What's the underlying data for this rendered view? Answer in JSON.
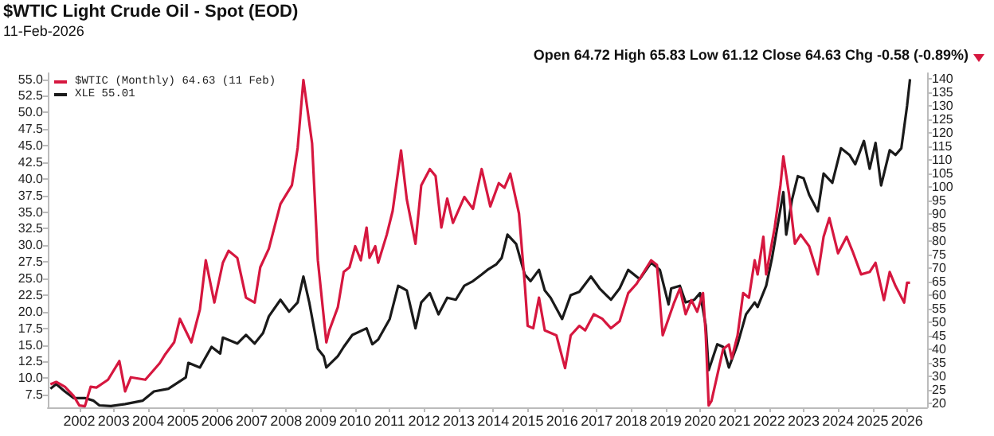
{
  "chart_data": {
    "type": "line",
    "title": "$WTIC Light Crude Oil - Spot (EOD)",
    "subtitle": "11-Feb-2026",
    "annotations": [
      "Open 64.72 High 65.83 Low 61.12 Close 64.63 Chg -0.58 (-0.89%)"
    ],
    "legend": "top left",
    "grid": false,
    "xlim": [
      "2001-02",
      "2026-08"
    ],
    "xticks": [
      "2002",
      "2003",
      "2004",
      "2005",
      "2006",
      "2007",
      "2008",
      "2009",
      "2010",
      "2011",
      "2012",
      "2013",
      "2014",
      "2015",
      "2016",
      "2017",
      "2018",
      "2019",
      "2020",
      "2021",
      "2022",
      "2023",
      "2024",
      "2025",
      "2026"
    ],
    "ylim": [
      5.6,
      55.9
    ],
    "yticks": [
      {
        "value": 7.5,
        "label": "7.5"
      },
      {
        "value": 10,
        "label": "10.0"
      },
      {
        "value": 12.5,
        "label": "12.5"
      },
      {
        "value": 15,
        "label": "15.0"
      },
      {
        "value": 17.5,
        "label": "17.5"
      },
      {
        "value": 20,
        "label": "20.0"
      },
      {
        "value": 22.5,
        "label": "22.5"
      },
      {
        "value": 25,
        "label": "25.0"
      },
      {
        "value": 27.5,
        "label": "27.5"
      },
      {
        "value": 30,
        "label": "30.0"
      },
      {
        "value": 32.5,
        "label": "32.5"
      },
      {
        "value": 35,
        "label": "35.0"
      },
      {
        "value": 37.5,
        "label": "37.5"
      },
      {
        "value": 40,
        "label": "40.0"
      },
      {
        "value": 42.5,
        "label": "42.5"
      },
      {
        "value": 45,
        "label": "45.0"
      },
      {
        "value": 47.5,
        "label": "47.5"
      },
      {
        "value": 50,
        "label": "50.0"
      },
      {
        "value": 52.5,
        "label": "52.5"
      },
      {
        "value": 55,
        "label": "55.0"
      }
    ],
    "y2lim": [
      18.6,
      142
    ],
    "y2ticks": [
      20,
      25,
      30,
      35,
      40,
      45,
      50,
      55,
      60,
      65,
      70,
      75,
      80,
      85,
      90,
      95,
      100,
      105,
      110,
      115,
      120,
      125,
      130,
      135,
      140
    ],
    "series": [
      {
        "name": "$WTIC (Monthly) 64.63 (11 Feb)",
        "color": "#d6173f",
        "axis": "y2",
        "x": [
          "2001-03",
          "2001-05",
          "2001-08",
          "2001-11",
          "2002-01",
          "2002-03",
          "2002-05",
          "2002-07",
          "2002-11",
          "2003-03",
          "2003-05",
          "2003-07",
          "2003-12",
          "2004-05",
          "2004-07",
          "2004-10",
          "2004-12",
          "2005-04",
          "2005-07",
          "2005-09",
          "2005-12",
          "2006-03",
          "2006-05",
          "2006-08",
          "2006-11",
          "2007-02",
          "2007-04",
          "2007-07",
          "2007-11",
          "2008-03",
          "2008-05",
          "2008-07",
          "2008-10",
          "2008-12",
          "2009-03",
          "2009-04",
          "2009-07",
          "2009-09",
          "2009-11",
          "2010-01",
          "2010-03",
          "2010-05",
          "2010-06",
          "2010-08",
          "2010-09",
          "2010-12",
          "2011-02",
          "2011-05",
          "2011-07",
          "2011-10",
          "2011-12",
          "2012-03",
          "2012-05",
          "2012-07",
          "2012-09",
          "2012-11",
          "2013-03",
          "2013-06",
          "2013-09",
          "2013-12",
          "2014-03",
          "2014-05",
          "2014-07",
          "2014-10",
          "2014-12",
          "2015-01",
          "2015-03",
          "2015-05",
          "2015-07",
          "2015-11",
          "2016-02",
          "2016-04",
          "2016-07",
          "2016-09",
          "2016-12",
          "2017-03",
          "2017-06",
          "2017-09",
          "2017-12",
          "2018-03",
          "2018-08",
          "2018-10",
          "2018-12",
          "2019-04",
          "2019-06",
          "2019-08",
          "2019-10",
          "2019-12",
          "2020-02",
          "2020-03",
          "2020-04",
          "2020-05",
          "2020-09",
          "2020-11",
          "2020-12",
          "2021-02",
          "2021-04",
          "2021-06",
          "2021-08",
          "2021-09",
          "2021-11",
          "2021-12",
          "2022-03",
          "2022-05",
          "2022-06",
          "2022-08",
          "2022-10",
          "2022-12",
          "2023-03",
          "2023-06",
          "2023-08",
          "2023-10",
          "2024-01",
          "2024-04",
          "2024-06",
          "2024-09",
          "2024-12",
          "2025-02",
          "2025-05",
          "2025-07",
          "2025-09",
          "2025-12",
          "2026-01",
          "2026-02"
        ],
        "values": [
          27.1,
          28,
          26.2,
          22.8,
          19.3,
          19,
          26.2,
          25.9,
          28.8,
          35.7,
          24.5,
          29.7,
          28.8,
          34.9,
          38.3,
          42.6,
          51.3,
          42.6,
          54.8,
          72.9,
          57.3,
          72,
          76.4,
          73.8,
          59.1,
          57.3,
          70.3,
          77.2,
          93.7,
          100.6,
          114.4,
          139.5,
          116.1,
          72.9,
          42.6,
          47,
          55.6,
          68.6,
          70.3,
          78.1,
          72.9,
          85,
          73.8,
          78.1,
          72,
          82.4,
          91.1,
          113.5,
          95.4,
          79,
          100.6,
          106.6,
          104,
          85,
          95.7,
          86.7,
          96.3,
          91.9,
          106.6,
          92.8,
          101.4,
          99.7,
          104.9,
          90.2,
          64.3,
          48.7,
          47.8,
          59.1,
          47,
          45.2,
          33.1,
          45.2,
          48.7,
          47,
          53,
          51.3,
          47.8,
          50.4,
          60.8,
          64.3,
          72.9,
          71.2,
          45.2,
          57.3,
          62.5,
          53,
          58.2,
          53.9,
          60.8,
          45.2,
          19.3,
          21,
          40.1,
          41.8,
          36.6,
          45.2,
          60.8,
          59.1,
          72.9,
          67.7,
          81.6,
          67.7,
          85,
          100.6,
          111.3,
          97.1,
          79,
          82.4,
          78.1,
          67.7,
          81.6,
          88.5,
          75.5,
          81.6,
          76.4,
          67.7,
          68.6,
          72,
          58.2,
          68.6,
          63.4,
          57.3,
          64.6,
          64.6
        ]
      },
      {
        "name": "XLE 55.01",
        "color": "#1a1a1a",
        "axis": "y",
        "x": [
          "2001-03",
          "2001-05",
          "2001-08",
          "2001-11",
          "2002-03",
          "2002-06",
          "2002-08",
          "2002-12",
          "2003-05",
          "2003-11",
          "2004-03",
          "2004-08",
          "2005-02",
          "2005-03",
          "2005-07",
          "2005-11",
          "2006-02",
          "2006-03",
          "2006-08",
          "2006-11",
          "2007-02",
          "2007-05",
          "2007-07",
          "2007-11",
          "2008-02",
          "2008-05",
          "2008-07",
          "2008-09",
          "2008-12",
          "2009-02",
          "2009-03",
          "2009-07",
          "2009-09",
          "2009-12",
          "2010-05",
          "2010-07",
          "2010-09",
          "2011-01",
          "2011-04",
          "2011-07",
          "2011-10",
          "2011-12",
          "2012-03",
          "2012-06",
          "2012-09",
          "2012-12",
          "2013-03",
          "2013-06",
          "2013-09",
          "2013-11",
          "2014-02",
          "2014-04",
          "2014-06",
          "2014-09",
          "2014-12",
          "2015-02",
          "2015-05",
          "2015-07",
          "2015-09",
          "2016-01",
          "2016-04",
          "2016-07",
          "2016-11",
          "2017-02",
          "2017-06",
          "2017-09",
          "2017-12",
          "2018-04",
          "2018-08",
          "2018-11",
          "2019-02",
          "2019-03",
          "2019-06",
          "2019-08",
          "2019-11",
          "2020-01",
          "2020-03",
          "2020-04",
          "2020-07",
          "2020-09",
          "2020-11",
          "2021-02",
          "2021-05",
          "2021-08",
          "2021-09",
          "2021-12",
          "2022-02",
          "2022-04",
          "2022-06",
          "2022-07",
          "2022-09",
          "2022-11",
          "2023-01",
          "2023-03",
          "2023-06",
          "2023-08",
          "2023-11",
          "2024-02",
          "2024-05",
          "2024-07",
          "2024-10",
          "2024-12",
          "2025-02",
          "2025-04",
          "2025-07",
          "2025-09",
          "2025-11",
          "2026-01",
          "2026-02"
        ],
        "values": [
          8.4,
          9.1,
          8,
          7,
          7,
          6.6,
          5.9,
          5.8,
          6.1,
          6.6,
          8,
          8.4,
          10.1,
          12.3,
          11.6,
          14.7,
          13.7,
          16.1,
          15.2,
          16.5,
          15.2,
          16.8,
          19.3,
          21.8,
          20,
          21.4,
          25.3,
          21.4,
          14.4,
          13.3,
          11.6,
          13.3,
          14.7,
          16.5,
          17.5,
          15.1,
          15.8,
          18.9,
          23.9,
          23.2,
          17.5,
          21.4,
          22.8,
          19.6,
          22.1,
          21.8,
          23.9,
          24.6,
          25.6,
          26.3,
          27.1,
          28.1,
          31.6,
          30.2,
          25.6,
          24.6,
          26.3,
          23.2,
          22.1,
          18.9,
          22.5,
          23,
          25.3,
          23.5,
          21.8,
          23.5,
          26.3,
          24.9,
          27.4,
          26.3,
          21.1,
          23.5,
          23.9,
          21.4,
          21.8,
          22.8,
          17.9,
          11.2,
          15.1,
          14.7,
          11.6,
          15.1,
          19.6,
          21.4,
          20.7,
          23.9,
          28.1,
          33,
          38,
          31.6,
          36.9,
          40.4,
          40.1,
          37.6,
          35.1,
          40.8,
          39.4,
          44.6,
          43.6,
          42.2,
          45.7,
          41.5,
          45.4,
          39,
          44.3,
          43.6,
          44.6,
          51,
          55
        ]
      }
    ]
  }
}
